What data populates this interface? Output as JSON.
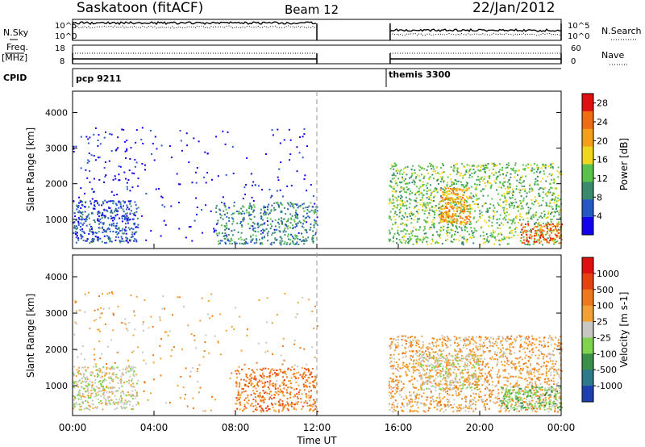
{
  "header": {
    "station": "Saskatoon (fitACF)",
    "beam": "Beam 12",
    "date": "22/Jan/2012"
  },
  "top_panels": {
    "nsky_label": "N.Sky",
    "nsearch_label": "N.Search",
    "noise_ticks": [
      "10^5",
      "10^0"
    ],
    "freq_label_1": "Freq.",
    "freq_label_2": "[MHz]",
    "freq_ticks": [
      "18",
      "8"
    ],
    "nave_label": "Nave",
    "nave_ticks": [
      "60",
      "0"
    ],
    "cpid_label": "CPID",
    "cpid_segments": [
      {
        "name": "pcp 9211",
        "start_hr": 0.0,
        "end_hr": 12.0
      },
      {
        "name": "themis 3300",
        "start_hr": 15.6,
        "end_hr": 24.0
      }
    ]
  },
  "chart_data": [
    {
      "type": "heatmap",
      "title": "Power",
      "xlabel": "Time UT",
      "ylabel": "Slant Range [km]",
      "x_ticks": [
        "00:00",
        "04:00",
        "08:00",
        "12:00",
        "16:00",
        "20:00",
        "00:00"
      ],
      "y_ticks": [
        1000,
        2000,
        3000,
        4000
      ],
      "xlim_hours": [
        0,
        24
      ],
      "ylim_km": [
        180,
        4600
      ],
      "colorbar": {
        "label": "Power [dB]",
        "ticks": [
          4,
          8,
          12,
          16,
          20,
          24,
          28
        ],
        "range": [
          0,
          30
        ],
        "colors": [
          "#1400f0",
          "#2457c8",
          "#3b8a6e",
          "#58c24a",
          "#f0d61c",
          "#f5a014",
          "#f26b10",
          "#e01010"
        ]
      },
      "scatter_regions": [
        {
          "t0": 0.0,
          "t1": 3.2,
          "r0": 1500,
          "r1": 3600,
          "density": 0.05,
          "level": 0
        },
        {
          "t0": 3.3,
          "t1": 12.0,
          "r0": 300,
          "r1": 3600,
          "density": 0.02,
          "level": 0
        },
        {
          "t0": 0.0,
          "t1": 3.2,
          "r0": 350,
          "r1": 1550,
          "density": 0.35,
          "level": 1
        },
        {
          "t0": 7.0,
          "t1": 12.0,
          "r0": 300,
          "r1": 1500,
          "density": 0.25,
          "level": 2
        },
        {
          "t0": 15.5,
          "t1": 24.0,
          "r0": 300,
          "r1": 2600,
          "density": 0.25,
          "level": 3
        },
        {
          "t0": 18.0,
          "t1": 19.5,
          "r0": 900,
          "r1": 1900,
          "density": 0.55,
          "level": 5
        },
        {
          "t0": 22.0,
          "t1": 24.0,
          "r0": 350,
          "r1": 900,
          "density": 0.45,
          "level": 6
        }
      ]
    },
    {
      "type": "heatmap",
      "title": "Velocity",
      "xlabel": "Time UT",
      "ylabel": "Slant Range [km]",
      "x_ticks": [
        "00:00",
        "04:00",
        "08:00",
        "12:00",
        "16:00",
        "20:00",
        "00:00"
      ],
      "y_ticks": [
        1000,
        2000,
        3000,
        4000
      ],
      "xlim_hours": [
        0,
        24
      ],
      "ylim_km": [
        180,
        4600
      ],
      "colorbar": {
        "label": "Velocity [m s-1]",
        "ticks": [
          "1000",
          "500",
          "100",
          "25",
          "-25",
          "-100",
          "-500",
          "-1000"
        ],
        "colors": [
          "#1e3fb0",
          "#2d7a8a",
          "#3a8f4a",
          "#7fd34e",
          "#c8c8c0",
          "#f2a233",
          "#f07818",
          "#e84010",
          "#e01010"
        ]
      },
      "scatter_regions": [
        {
          "t0": 0.0,
          "t1": 3.2,
          "r0": 1500,
          "r1": 3600,
          "density": 0.04,
          "level": 5
        },
        {
          "t0": 3.3,
          "t1": 12.0,
          "r0": 300,
          "r1": 3600,
          "density": 0.02,
          "level": 5
        },
        {
          "t0": 0.0,
          "t1": 3.2,
          "r0": 350,
          "r1": 1550,
          "density": 0.35,
          "level": 4
        },
        {
          "t0": 8.0,
          "t1": 12.0,
          "r0": 300,
          "r1": 1500,
          "density": 0.3,
          "level": 6
        },
        {
          "t0": 15.5,
          "t1": 24.0,
          "r0": 300,
          "r1": 2400,
          "density": 0.3,
          "level": 5
        },
        {
          "t0": 17.0,
          "t1": 20.0,
          "r0": 900,
          "r1": 1900,
          "density": 0.3,
          "level": 4
        },
        {
          "t0": 21.0,
          "t1": 24.0,
          "r0": 350,
          "r1": 1000,
          "density": 0.4,
          "level": 3
        }
      ]
    }
  ]
}
